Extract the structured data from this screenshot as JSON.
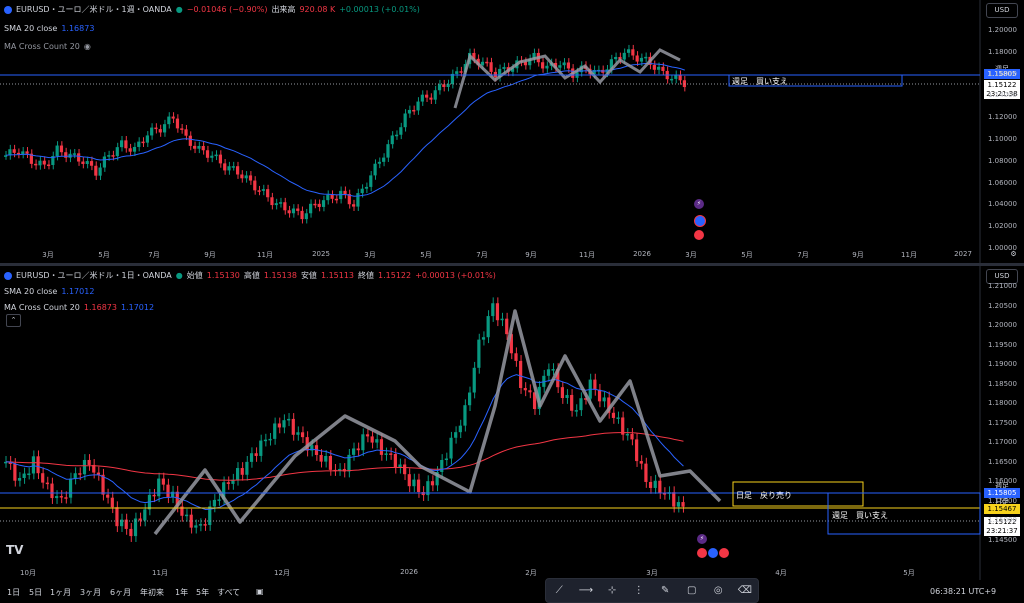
{
  "top": {
    "symbol": "EURUSD・ユーロ／米ドル・1週・OANDA",
    "change": "−0.01046 (−0.90%)",
    "volume_label": "出来高",
    "volume_value": "920.08 K",
    "spread": "+0.00013 (+0.01%)",
    "sma_label": "SMA 20 close",
    "sma_value": "1.16873",
    "ma_cross_label": "MA Cross Count 20",
    "currency": "USD",
    "price_levels": [
      "1.20000",
      "1.18000",
      "1.16000",
      "1.14000",
      "1.12000",
      "1.10000",
      "1.08000",
      "1.06000",
      "1.04000",
      "1.02000",
      "1.00000"
    ],
    "time_labels": [
      "3月",
      "5月",
      "7月",
      "9月",
      "11月",
      "2025",
      "3月",
      "5月",
      "7月",
      "9月",
      "11月",
      "2026",
      "3月",
      "5月",
      "7月",
      "9月",
      "11月",
      "2027"
    ],
    "shuuashi_tag": "週足",
    "shuuashi_price": "1.15805",
    "last_price": "1.15122",
    "countdown": "23:21:38",
    "box_label": "週足　買い支え"
  },
  "bottom": {
    "symbol": "EURUSD・ユーロ／米ドル・1日・OANDA",
    "open_label": "始値",
    "open": "1.15130",
    "high_label": "高値",
    "high": "1.15138",
    "low_label": "安値",
    "low": "1.15113",
    "close_label": "終値",
    "close": "1.15122",
    "change": "+0.00013 (+0.01%)",
    "sma_label": "SMA 20 close",
    "sma_value": "1.17012",
    "ma_cross_label": "MA Cross Count 20",
    "ma_cross_v1": "1.16873",
    "ma_cross_v2": "1.17012",
    "currency": "USD",
    "price_levels": [
      "1.21000",
      "1.20500",
      "1.20000",
      "1.19500",
      "1.19000",
      "1.18500",
      "1.18000",
      "1.17500",
      "1.17000",
      "1.16500",
      "1.16000",
      "1.15500",
      "1.15000",
      "1.14500"
    ],
    "time_labels": [
      "10月",
      "11月",
      "12月",
      "2026",
      "2月",
      "3月",
      "4月",
      "5月"
    ],
    "shuuashi_tag": "週足",
    "shuuashi_price": "1.15805",
    "nichiashi_tag": "日足",
    "nichiashi_price": "1.15467",
    "last_price": "1.15122",
    "countdown": "23:21:37",
    "box1_label": "日足　戻り売り",
    "box2_label": "週足　買い支え"
  },
  "timeframes": [
    "1日",
    "5日",
    "1ヶ月",
    "3ヶ月",
    "6ヶ月",
    "年初来",
    "1年",
    "5年",
    "すべて"
  ],
  "clock": "06:38:21 UTC+9",
  "colors": {
    "up": "#089981",
    "down": "#f23645",
    "sma": "#2962ff",
    "ma_red": "#f23645",
    "yellow": "#f7d21c"
  },
  "toolbar_icons": [
    "trend-line-icon",
    "horizontal-ray-icon",
    "cross-line-icon",
    "vertical-line-icon",
    "brush-icon",
    "rectangle-icon",
    "eye-icon",
    "eraser-icon"
  ]
}
